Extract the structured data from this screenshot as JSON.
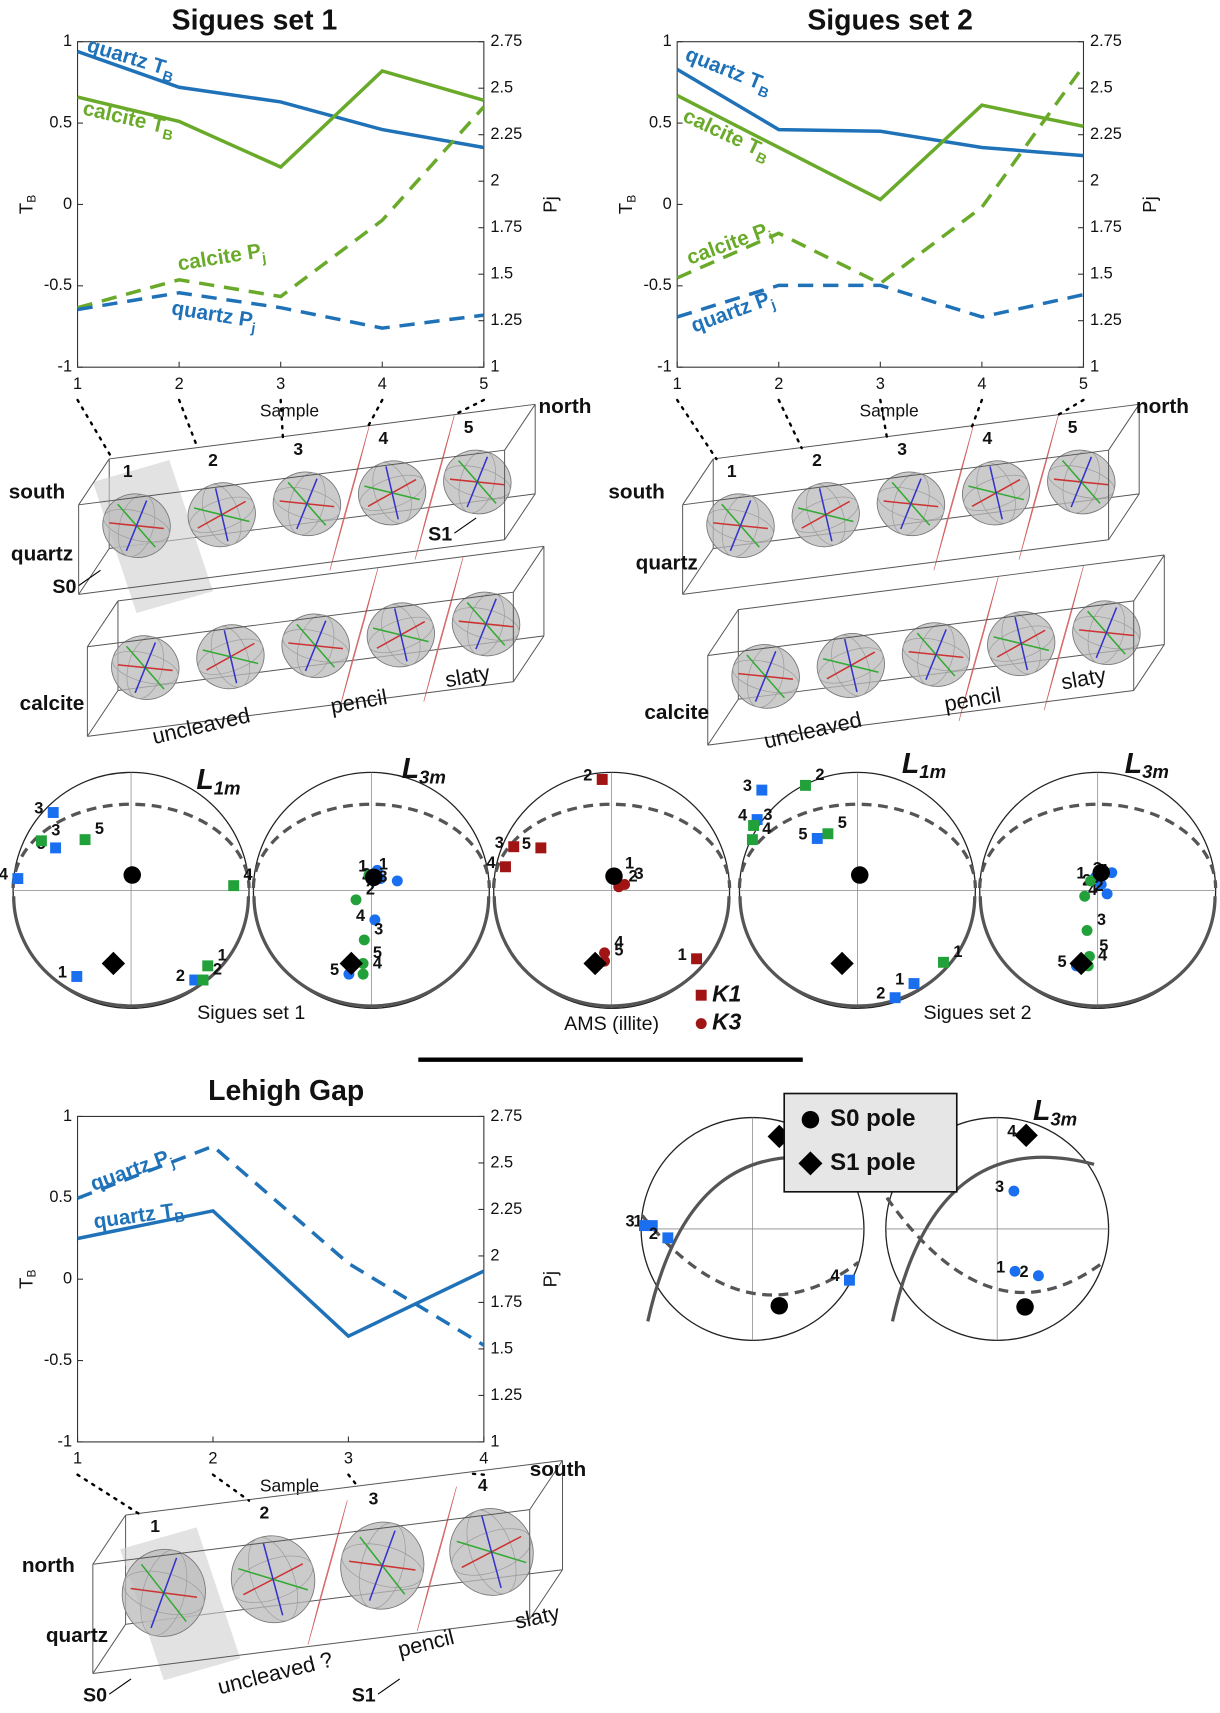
{
  "chart_data": [
    {
      "type": "line",
      "title": "Sigues set 1",
      "xlabel": "Sample",
      "ylabel": "T",
      "ylabel_subscript": "B",
      "y2label": "Pj",
      "x": [
        1,
        2,
        3,
        4,
        5
      ],
      "xlim": [
        1,
        5
      ],
      "xticks": [
        1,
        2,
        3,
        4,
        5
      ],
      "ylim": [
        -1,
        1
      ],
      "yticks": [
        -1,
        -0.5,
        0,
        0.5,
        1
      ],
      "y2lim": [
        1,
        2.75
      ],
      "y2ticks": [
        1,
        1.25,
        1.5,
        1.75,
        2,
        2.25,
        2.5,
        2.75
      ],
      "series": [
        {
          "name": "quartz T",
          "subscript": "B",
          "color": "#1f72b8",
          "line_style": "solid",
          "values": [
            0.94,
            0.72,
            0.63,
            0.46,
            0.35
          ]
        },
        {
          "name": "calcite T",
          "subscript": "B",
          "color": "#6aaa2a",
          "line_style": "solid",
          "values": [
            0.66,
            0.51,
            0.23,
            0.82,
            0.64
          ]
        },
        {
          "name": "calcite P",
          "subscript": "j",
          "color": "#6aaa2a",
          "line_style": "dashed",
          "axis": "y2",
          "values": [
            1.32,
            1.47,
            1.38,
            1.79,
            2.4
          ]
        },
        {
          "name": "quartz P",
          "subscript": "j",
          "color": "#1f72b8",
          "line_style": "dashed",
          "axis": "y2",
          "values": [
            1.31,
            1.4,
            1.32,
            1.21,
            1.28
          ]
        }
      ]
    },
    {
      "type": "line",
      "title": "Sigues set 2",
      "xlabel": "Sample",
      "ylabel": "T",
      "ylabel_subscript": "B",
      "y2label": "Pj",
      "x": [
        1,
        2,
        3,
        4,
        5
      ],
      "xlim": [
        1,
        5
      ],
      "xticks": [
        1,
        2,
        3,
        4,
        5
      ],
      "ylim": [
        -1,
        1
      ],
      "yticks": [
        -1,
        -0.5,
        0,
        0.5,
        1
      ],
      "y2lim": [
        1,
        2.75
      ],
      "y2ticks": [
        1,
        1.25,
        1.5,
        1.75,
        2,
        2.25,
        2.5,
        2.75
      ],
      "series": [
        {
          "name": "quartz T",
          "subscript": "B",
          "color": "#1f72b8",
          "line_style": "solid",
          "values": [
            0.83,
            0.46,
            0.45,
            0.35,
            0.3
          ]
        },
        {
          "name": "calcite T",
          "subscript": "B",
          "color": "#6aaa2a",
          "line_style": "solid",
          "values": [
            0.67,
            0.35,
            0.03,
            0.61,
            0.48
          ]
        },
        {
          "name": "calcite P",
          "subscript": "j",
          "color": "#6aaa2a",
          "line_style": "dashed",
          "axis": "y2",
          "values": [
            1.48,
            1.72,
            1.45,
            1.86,
            2.62
          ]
        },
        {
          "name": "quartz P",
          "subscript": "j",
          "color": "#1f72b8",
          "line_style": "dashed",
          "axis": "y2",
          "values": [
            1.27,
            1.44,
            1.44,
            1.27,
            1.39
          ]
        }
      ]
    },
    {
      "type": "line",
      "title": "Lehigh Gap",
      "xlabel": "Sample",
      "ylabel": "T",
      "ylabel_subscript": "B",
      "y2label": "Pj",
      "x": [
        1,
        2,
        3,
        4
      ],
      "xlim": [
        1,
        4
      ],
      "xticks": [
        1,
        2,
        3,
        4
      ],
      "ylim": [
        -1,
        1
      ],
      "yticks": [
        -1,
        -0.5,
        0,
        0.5,
        1
      ],
      "y2lim": [
        1,
        2.75
      ],
      "y2ticks": [
        1,
        1.25,
        1.5,
        1.75,
        2,
        2.25,
        2.5,
        2.75
      ],
      "series": [
        {
          "name": "quartz P",
          "subscript": "j",
          "color": "#1f72b8",
          "line_style": "dashed",
          "axis": "y2",
          "values": [
            2.31,
            2.59,
            1.96,
            1.52
          ]
        },
        {
          "name": "quartz T",
          "subscript": "B",
          "color": "#1f72b8",
          "line_style": "solid",
          "values": [
            0.25,
            0.42,
            -0.35,
            0.05
          ]
        }
      ]
    },
    {
      "type": "stereonet",
      "title": "L",
      "title_subscript": "1m",
      "xlim": [
        -1,
        1
      ],
      "ylim": [
        -1,
        1
      ],
      "series": [
        {
          "color": "#1a6ff0",
          "marker": "square",
          "x": [
            -0.46,
            0.54,
            -0.66,
            -0.96,
            -0.64
          ],
          "values": [
            -0.73,
            -0.76,
            0.66,
            0.1,
            0.36
          ],
          "point_labels": [
            "1",
            "2",
            "3",
            "4",
            "5"
          ]
        },
        {
          "color": "#22a13a",
          "marker": "square",
          "x": [
            0.65,
            0.61,
            -0.76,
            0.87,
            -0.39
          ],
          "values": [
            -0.64,
            -0.76,
            0.42,
            0.04,
            0.43
          ],
          "point_labels": [
            "1",
            "2",
            "3",
            "4",
            "5"
          ]
        },
        {
          "color": "#000000",
          "marker": "circle",
          "x": [
            0.01
          ],
          "values": [
            0.13
          ]
        },
        {
          "color": "#000000",
          "marker": "diamond",
          "x": [
            -0.15
          ],
          "values": [
            -0.62
          ]
        }
      ]
    },
    {
      "type": "stereonet",
      "title": "L",
      "title_subscript": "3m",
      "xlim": [
        -1,
        1
      ],
      "ylim": [
        -1,
        1
      ],
      "series": [
        {
          "color": "#1a6ff0",
          "marker": "circle",
          "x": [
            0.05,
            0.08,
            0.22,
            0.03,
            -0.19
          ],
          "values": [
            0.17,
            0.1,
            0.08,
            -0.25,
            -0.71
          ],
          "point_labels": [
            "1",
            "2",
            "3",
            "4",
            "5"
          ]
        },
        {
          "color": "#22a13a",
          "marker": "circle",
          "x": [
            -0.02,
            -0.13,
            -0.06,
            -0.07,
            -0.07
          ],
          "values": [
            0.13,
            -0.08,
            -0.42,
            -0.71,
            -0.62
          ],
          "point_labels": [
            "1",
            "2",
            "3",
            "4",
            "5"
          ]
        },
        {
          "color": "#000000",
          "marker": "circle",
          "x": [
            0.02
          ],
          "values": [
            0.11
          ]
        },
        {
          "color": "#000000",
          "marker": "diamond",
          "x": [
            -0.17
          ],
          "values": [
            -0.62
          ]
        }
      ]
    },
    {
      "type": "stereonet",
      "xlim": [
        -1,
        1
      ],
      "ylim": [
        -1,
        1
      ],
      "series": [
        {
          "name": "K1",
          "color": "#a01414",
          "marker": "square",
          "x": [
            0.72,
            -0.08,
            -0.83,
            -0.9,
            -0.6
          ],
          "values": [
            -0.58,
            0.94,
            0.37,
            0.2,
            0.36
          ],
          "point_labels": [
            "1",
            "2",
            "3",
            "4",
            "5"
          ]
        },
        {
          "name": "K3",
          "color": "#a01414",
          "marker": "circle",
          "x": [
            0.03,
            0.06,
            0.11,
            -0.06,
            -0.06
          ],
          "values": [
            0.14,
            0.03,
            0.05,
            -0.53,
            -0.6
          ],
          "point_labels": [
            "1",
            "2",
            "3",
            "4",
            "5"
          ]
        },
        {
          "color": "#000000",
          "marker": "circle",
          "x": [
            0.02
          ],
          "values": [
            0.12
          ]
        },
        {
          "color": "#000000",
          "marker": "diamond",
          "x": [
            -0.14
          ],
          "values": [
            -0.62
          ]
        }
      ]
    },
    {
      "type": "stereonet",
      "title": "L",
      "title_subscript": "1m",
      "xlim": [
        -1,
        1
      ],
      "ylim": [
        -1,
        1
      ],
      "series": [
        {
          "color": "#1a6ff0",
          "marker": "square",
          "x": [
            0.48,
            0.32,
            -0.81,
            -0.85,
            -0.34
          ],
          "values": [
            -0.79,
            -0.91,
            0.85,
            0.6,
            0.44
          ],
          "point_labels": [
            "1",
            "2",
            "3",
            "4",
            "5"
          ]
        },
        {
          "color": "#22a13a",
          "marker": "square",
          "x": [
            0.73,
            -0.44,
            -0.88,
            -0.89,
            -0.25
          ],
          "values": [
            -0.61,
            0.89,
            0.55,
            0.43,
            0.48
          ],
          "point_labels": [
            "1",
            "2",
            "3",
            "4",
            "5"
          ]
        },
        {
          "color": "#000000",
          "marker": "circle",
          "x": [
            0.02
          ],
          "values": [
            0.13
          ]
        },
        {
          "color": "#000000",
          "marker": "diamond",
          "x": [
            -0.13
          ],
          "values": [
            -0.62
          ]
        }
      ]
    },
    {
      "type": "stereonet",
      "title": "L",
      "title_subscript": "3m",
      "xlim": [
        -1,
        1
      ],
      "ylim": [
        -1,
        1
      ],
      "series": [
        {
          "color": "#1a6ff0",
          "marker": "circle",
          "x": [
            -0.02,
            0.03,
            0.12,
            0.08,
            -0.18
          ],
          "values": [
            0.11,
            0.05,
            0.15,
            -0.03,
            -0.64
          ],
          "point_labels": [
            "1",
            "2",
            "3",
            "4",
            "5"
          ]
        },
        {
          "color": "#22a13a",
          "marker": "circle",
          "x": [
            -0.06,
            -0.11,
            -0.09,
            -0.08,
            -0.07
          ],
          "values": [
            0.08,
            -0.05,
            -0.34,
            -0.64,
            -0.56
          ],
          "point_labels": [
            "1",
            "2",
            "3",
            "4",
            "5"
          ]
        },
        {
          "color": "#000000",
          "marker": "circle",
          "x": [
            0.03
          ],
          "values": [
            0.15
          ]
        },
        {
          "color": "#000000",
          "marker": "diamond",
          "x": [
            -0.14
          ],
          "values": [
            -0.62
          ]
        }
      ]
    },
    {
      "type": "stereonet",
      "title": "L",
      "title_subscript": "1m",
      "xlim": [
        -1,
        1
      ],
      "ylim": [
        -1,
        1
      ],
      "series": [
        {
          "color": "#1a6ff0",
          "marker": "square",
          "x": [
            -0.9,
            -0.76,
            -0.97,
            0.87
          ],
          "values": [
            0.03,
            -0.08,
            0.03,
            -0.46
          ],
          "point_labels": [
            "1",
            "2",
            "3",
            "4"
          ]
        },
        {
          "color": "#000000",
          "marker": "circle",
          "x": [
            0.24
          ],
          "values": [
            -0.69
          ]
        },
        {
          "color": "#000000",
          "marker": "diamond",
          "x": [
            0.24
          ],
          "values": [
            0.83
          ]
        }
      ]
    },
    {
      "type": "stereonet",
      "title": "L",
      "title_subscript": "3m",
      "xlim": [
        -1,
        1
      ],
      "ylim": [
        -1,
        1
      ],
      "series": [
        {
          "color": "#1a6ff0",
          "marker": "circle",
          "x": [
            0.16,
            0.37,
            0.15,
            0.26
          ],
          "values": [
            -0.38,
            -0.42,
            0.34,
            0.84
          ],
          "point_labels": [
            "1",
            "2",
            "3",
            "4"
          ]
        },
        {
          "color": "#000000",
          "marker": "circle",
          "x": [
            0.25
          ],
          "values": [
            -0.7
          ]
        },
        {
          "color": "#000000",
          "marker": "diamond",
          "x": [
            0.26
          ],
          "values": [
            0.84
          ]
        }
      ]
    }
  ],
  "stereonet_captions": [
    "Sigues set 1",
    "AMS (illite)",
    "Sigues set 2"
  ],
  "pole_legend": [
    "S0 pole",
    "S1 pole"
  ],
  "diagrams": [
    {
      "end_labels": [
        "south",
        "north"
      ],
      "rows": [
        {
          "mineral": "quartz",
          "samples": [
            "1",
            "2",
            "3",
            "4",
            "5"
          ]
        },
        {
          "mineral": "calcite"
        }
      ],
      "planes": [
        "S0",
        "S1"
      ],
      "zones": [
        "uncleaved",
        "pencil",
        "slaty"
      ]
    },
    {
      "end_labels": [
        "south",
        "north"
      ],
      "rows": [
        {
          "mineral": "quartz",
          "samples": [
            "1",
            "2",
            "3",
            "4",
            "5"
          ]
        },
        {
          "mineral": "calcite"
        }
      ],
      "zones": [
        "uncleaved",
        "pencil",
        "slaty"
      ]
    },
    {
      "end_labels": [
        "north",
        "south"
      ],
      "rows": [
        {
          "mineral": "quartz",
          "samples": [
            "1",
            "2",
            "3",
            "4"
          ]
        }
      ],
      "planes": [
        "S0",
        "S1"
      ],
      "zones": [
        "uncleaved ?",
        "pencil",
        "slaty"
      ]
    }
  ]
}
